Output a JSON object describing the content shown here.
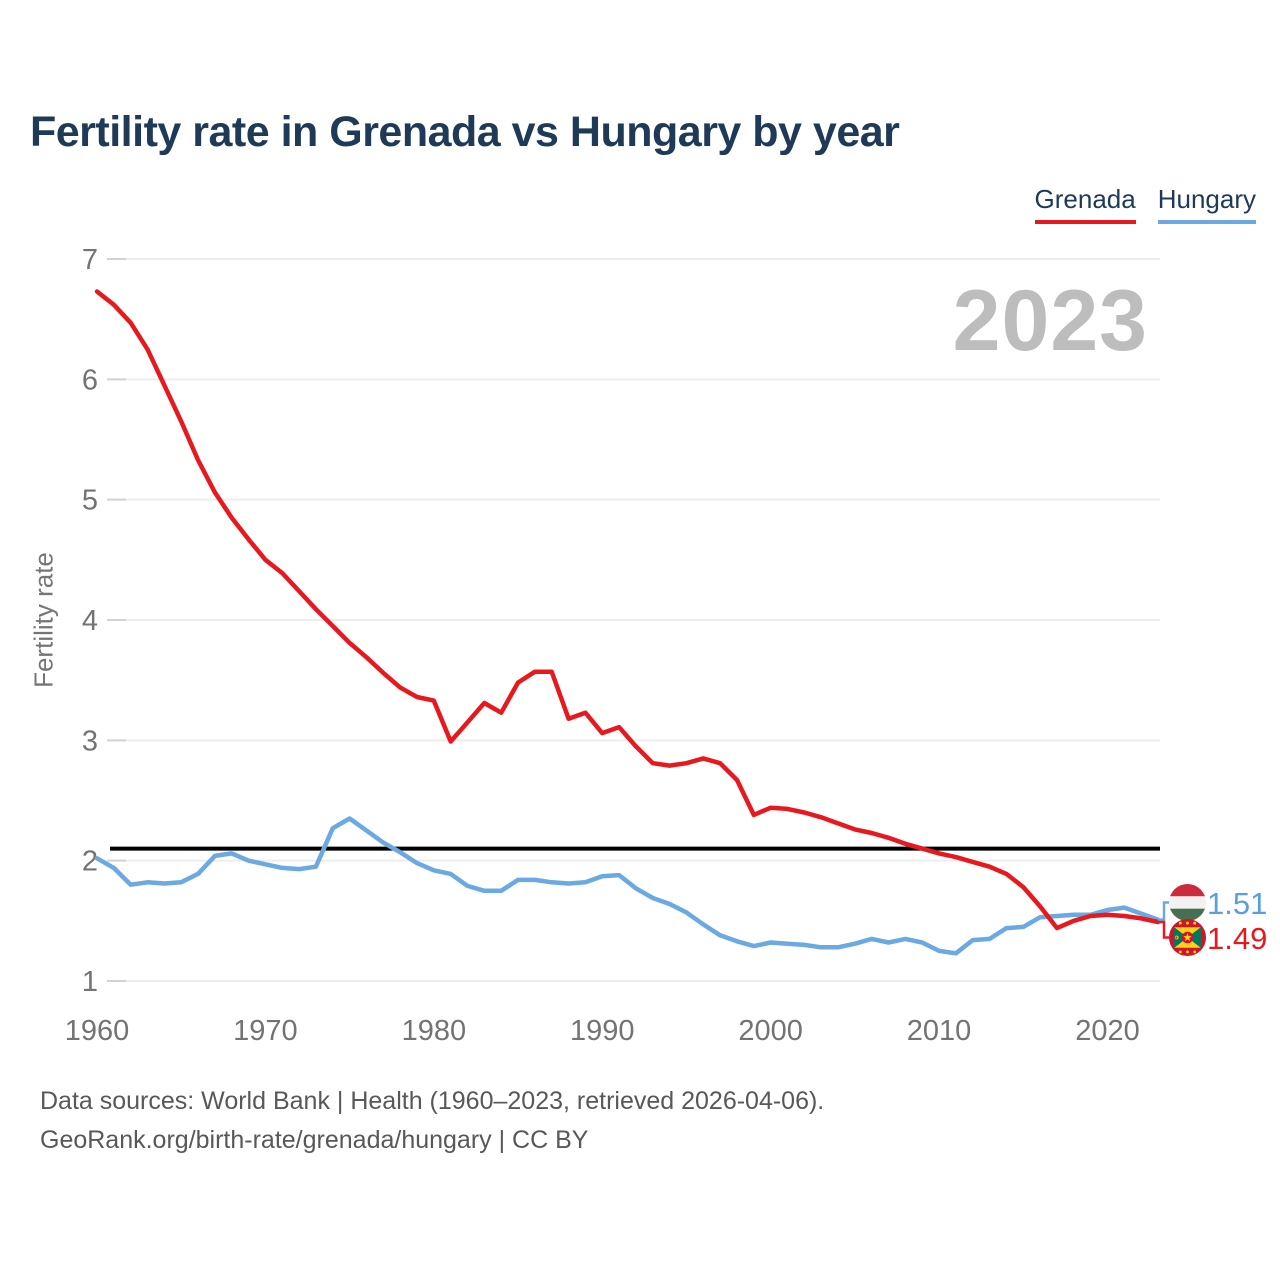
{
  "header": {
    "title": "Fertility rate in Grenada vs Hungary by year"
  },
  "legend": {
    "items": [
      {
        "label": "Grenada",
        "color": "#e8191e"
      },
      {
        "label": "Hungary",
        "color": "#6aa9e1"
      }
    ]
  },
  "watermark": "2023",
  "chart_data": {
    "type": "line",
    "title": "Fertility rate in Grenada vs Hungary by year",
    "xlabel": "",
    "ylabel": "Fertility rate",
    "ylim": [
      1,
      7
    ],
    "yticks": [
      1,
      2,
      3,
      4,
      5,
      6,
      7
    ],
    "xticks": [
      1960,
      1970,
      1980,
      1990,
      2000,
      2010,
      2020
    ],
    "x_range": [
      1960,
      2023
    ],
    "grid": true,
    "legend_position": "top-right",
    "reference_line": {
      "value": 2.1,
      "color": "#000000"
    },
    "series": [
      {
        "name": "Hungary",
        "color": "#6aa9e1",
        "end_label": "1.51",
        "values": [
          2.02,
          1.94,
          1.8,
          1.82,
          1.81,
          1.82,
          1.89,
          2.04,
          2.06,
          2.0,
          1.97,
          1.94,
          1.93,
          1.95,
          2.27,
          2.35,
          2.25,
          2.15,
          2.07,
          1.98,
          1.92,
          1.89,
          1.79,
          1.75,
          1.75,
          1.84,
          1.84,
          1.82,
          1.81,
          1.82,
          1.87,
          1.88,
          1.77,
          1.69,
          1.64,
          1.57,
          1.47,
          1.38,
          1.33,
          1.29,
          1.32,
          1.31,
          1.3,
          1.28,
          1.28,
          1.31,
          1.35,
          1.32,
          1.35,
          1.32,
          1.25,
          1.23,
          1.34,
          1.35,
          1.44,
          1.45,
          1.53,
          1.54,
          1.55,
          1.55,
          1.59,
          1.61,
          1.56,
          1.51
        ]
      },
      {
        "name": "Grenada",
        "color": "#e8191e",
        "end_label": "1.49",
        "values": [
          6.73,
          6.62,
          6.47,
          6.25,
          5.95,
          5.65,
          5.33,
          5.06,
          4.85,
          4.67,
          4.5,
          4.39,
          4.24,
          4.09,
          3.95,
          3.81,
          3.69,
          3.56,
          3.44,
          3.36,
          3.33,
          2.99,
          3.15,
          3.31,
          3.23,
          3.48,
          3.57,
          3.57,
          3.18,
          3.23,
          3.06,
          3.11,
          2.95,
          2.81,
          2.79,
          2.81,
          2.85,
          2.81,
          2.67,
          2.38,
          2.44,
          2.43,
          2.4,
          2.36,
          2.31,
          2.26,
          2.23,
          2.19,
          2.14,
          2.1,
          2.06,
          2.03,
          1.99,
          1.95,
          1.89,
          1.78,
          1.62,
          1.44,
          1.5,
          1.54,
          1.55,
          1.54,
          1.52,
          1.49
        ]
      }
    ]
  },
  "end_labels": {
    "hungary": {
      "value": "1.51",
      "color": "#5a9fdd",
      "flag": "hungary-flag-icon"
    },
    "grenada": {
      "value": "1.49",
      "color": "#e8191e",
      "flag": "grenada-flag-icon"
    }
  },
  "footer": {
    "line1": "Data sources: World Bank | Health (1960–2023, retrieved 2026-04-06).",
    "line2": "GeoRank.org/birth-rate/grenada/hungary | CC BY"
  }
}
